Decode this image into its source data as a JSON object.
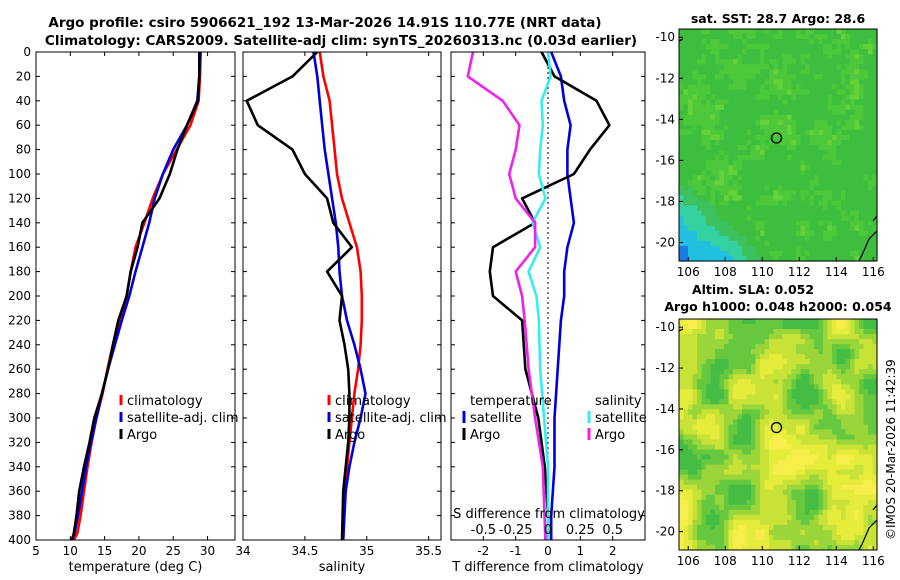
{
  "title_line1": "Argo profile: csiro 5906621_192 13-Mar-2026 14.91S 110.77E (NRT data)",
  "title_line2": "Climatology: CARS2009. Satellite-adj clim: synTS_20260313.nc (0.03d earlier)",
  "colors": {
    "climatology": "#ff0000",
    "satellite": "#0000dd",
    "argo": "#000000",
    "sal_sat": "#33eeee",
    "sal_argo": "#ee22ee"
  },
  "chart_data": [
    {
      "type": "line",
      "name": "temperature",
      "xlabel": "temperature (deg C)",
      "xlim": [
        5,
        34
      ],
      "ylim": [
        0,
        400
      ],
      "xticks": [
        5,
        10,
        15,
        20,
        25,
        30
      ],
      "yticks": [
        0,
        20,
        40,
        60,
        80,
        100,
        120,
        140,
        160,
        180,
        200,
        220,
        240,
        260,
        280,
        300,
        320,
        340,
        360,
        380,
        400
      ],
      "legend": [
        "climatology",
        "satellite-adj. clim",
        "Argo"
      ],
      "series": [
        {
          "name": "climatology",
          "color": "climatology",
          "x": [
            29,
            28.9,
            28.7,
            27.5,
            25.5,
            23.5,
            22,
            20.8,
            19.5,
            18.8,
            18.2,
            17.2,
            16.2,
            15.4,
            14.7,
            13.8,
            13.1,
            12.5,
            12,
            11.5,
            11,
            10.5,
            10.2
          ],
          "y": [
            0,
            20,
            40,
            60,
            80,
            100,
            120,
            140,
            160,
            180,
            200,
            220,
            240,
            260,
            280,
            300,
            320,
            340,
            360,
            380,
            395,
            400,
            400
          ]
        },
        {
          "name": "satellite-adj. clim",
          "color": "satellite",
          "x": [
            28.9,
            28.8,
            28.5,
            27,
            25,
            23.5,
            22.3,
            21.5,
            20.5,
            19.5,
            18.6,
            17.5,
            16.5,
            15.5,
            14.6,
            13.8,
            13,
            12.3,
            11.7,
            11.1,
            10.6,
            10.2
          ],
          "y": [
            0,
            20,
            40,
            60,
            80,
            100,
            120,
            140,
            160,
            180,
            200,
            220,
            240,
            260,
            280,
            300,
            320,
            340,
            360,
            380,
            395,
            400
          ]
        },
        {
          "name": "Argo",
          "color": "argo",
          "x": [
            28.8,
            28.8,
            28.6,
            27,
            25.6,
            24.5,
            23,
            20.5,
            19.8,
            18.8,
            18.2,
            17,
            16.2,
            15.5,
            14.6,
            13.5,
            12.8,
            12,
            11.3,
            10.9,
            10.5,
            10.2
          ],
          "y": [
            0,
            20,
            40,
            60,
            80,
            100,
            120,
            140,
            160,
            180,
            200,
            220,
            240,
            260,
            280,
            300,
            320,
            340,
            360,
            380,
            395,
            400
          ]
        }
      ]
    },
    {
      "type": "line",
      "name": "salinity",
      "xlabel": "salinity",
      "xlim": [
        34,
        35.6
      ],
      "ylim": [
        0,
        400
      ],
      "xticks": [
        34,
        34.5,
        35,
        35.5
      ],
      "xticklabels": [
        "34",
        "34.5",
        "35",
        "35.5"
      ],
      "legend": [
        "climatology",
        "satellite-adj. clim",
        "Argo"
      ],
      "series": [
        {
          "name": "climatology",
          "color": "climatology",
          "x": [
            34.62,
            34.65,
            34.7,
            34.72,
            34.74,
            34.76,
            34.8,
            34.86,
            34.92,
            34.95,
            34.96,
            34.96,
            34.95,
            34.93,
            34.9,
            34.88,
            34.86,
            34.84,
            34.82,
            34.81
          ],
          "y": [
            0,
            20,
            40,
            60,
            80,
            100,
            120,
            140,
            160,
            180,
            200,
            220,
            240,
            260,
            280,
            300,
            320,
            340,
            360,
            400
          ]
        },
        {
          "name": "satellite-adj. clim",
          "color": "satellite",
          "x": [
            34.57,
            34.6,
            34.62,
            34.64,
            34.66,
            34.69,
            34.72,
            34.75,
            34.77,
            34.78,
            34.8,
            34.84,
            34.9,
            34.95,
            34.99,
            34.95,
            34.9,
            34.86,
            34.83,
            34.81
          ],
          "y": [
            0,
            20,
            40,
            60,
            80,
            100,
            120,
            140,
            160,
            180,
            200,
            220,
            240,
            260,
            280,
            300,
            320,
            340,
            360,
            400
          ]
        },
        {
          "name": "Argo",
          "color": "argo",
          "x": [
            34.6,
            34.4,
            34.03,
            34.12,
            34.4,
            34.5,
            34.68,
            34.73,
            34.88,
            34.68,
            34.8,
            34.78,
            34.82,
            34.85,
            34.86,
            34.86,
            34.85,
            34.83,
            34.81,
            34.8
          ],
          "y": [
            0,
            20,
            40,
            60,
            80,
            100,
            120,
            140,
            160,
            180,
            200,
            220,
            240,
            260,
            280,
            300,
            320,
            340,
            360,
            400
          ]
        }
      ]
    },
    {
      "type": "line",
      "name": "differences",
      "xlabel": "T difference from climatology",
      "x2label": "S difference from climatology",
      "xlim": [
        -3,
        3
      ],
      "ylim": [
        0,
        400
      ],
      "xticks": [
        -2,
        -1,
        0,
        1,
        2
      ],
      "x2ticks": [
        -0.5,
        -0.25,
        0,
        0.25,
        0.5
      ],
      "x2ticklabels": [
        "-0.5",
        "-0.25",
        "0",
        "0.25",
        "0.5"
      ],
      "legend": {
        "temperature": "temperature",
        "salinity": "salinity",
        "satellite": "satellite",
        "argo": "Argo"
      },
      "series": [
        {
          "name": "T satellite",
          "color": "satellite",
          "x": [
            0.1,
            0.4,
            0.5,
            0.7,
            0.6,
            0.6,
            0.7,
            0.8,
            0.6,
            0.5,
            0.5,
            0.4,
            0.3,
            0.2,
            0.2,
            0.1,
            0.1,
            0.1
          ],
          "y": [
            0,
            20,
            40,
            60,
            80,
            100,
            120,
            140,
            160,
            180,
            200,
            220,
            260,
            300,
            340,
            380,
            395,
            400
          ]
        },
        {
          "name": "T Argo",
          "color": "argo",
          "x": [
            -0.2,
            0.2,
            1.5,
            1.9,
            1.3,
            0.8,
            -0.8,
            -0.4,
            -1.7,
            -1.8,
            -1.7,
            -0.8,
            -0.7,
            -0.3,
            -0.1,
            0,
            0
          ],
          "y": [
            0,
            20,
            40,
            60,
            80,
            100,
            120,
            140,
            160,
            180,
            200,
            220,
            260,
            300,
            340,
            380,
            400
          ]
        },
        {
          "name": "S satellite",
          "color": "sal_sat",
          "x": [
            0,
            0.02,
            -0.05,
            -0.04,
            -0.06,
            -0.07,
            -0.02,
            -0.12,
            -0.06,
            -0.15,
            -0.09,
            -0.07,
            -0.06,
            -0.03,
            0,
            0
          ],
          "y": [
            0,
            20,
            40,
            60,
            80,
            100,
            120,
            140,
            160,
            180,
            200,
            220,
            260,
            300,
            340,
            400
          ]
        },
        {
          "name": "S Argo",
          "color": "sal_argo",
          "x": [
            -0.58,
            -0.62,
            -0.35,
            -0.22,
            -0.25,
            -0.3,
            -0.25,
            -0.1,
            -0.1,
            -0.25,
            -0.2,
            -0.18,
            -0.15,
            -0.1,
            -0.04,
            -0.02
          ],
          "y": [
            0,
            20,
            40,
            60,
            80,
            100,
            120,
            140,
            160,
            180,
            200,
            220,
            260,
            300,
            340,
            400
          ]
        }
      ]
    },
    {
      "type": "heatmap",
      "name": "sst_map",
      "title": "sat. SST: 28.7 Argo: 28.6",
      "xticks": [
        106,
        108,
        110,
        112,
        114,
        116
      ],
      "yticks": [
        -10,
        -12,
        -14,
        -16,
        -18,
        -20
      ],
      "xlim": [
        105.5,
        116.2
      ],
      "ylim": [
        -20.9,
        -9.6
      ],
      "marker": {
        "lon": 110.77,
        "lat": -14.91
      }
    },
    {
      "type": "heatmap",
      "name": "sla_map",
      "title1": "Altim. SLA: 0.052",
      "title2": "Argo h1000: 0.048 h2000: 0.054",
      "xticks": [
        106,
        108,
        110,
        112,
        114,
        116
      ],
      "yticks": [
        -10,
        -12,
        -14,
        -16,
        -18,
        -20
      ],
      "xlim": [
        105.5,
        116.2
      ],
      "ylim": [
        -20.9,
        -9.6
      ],
      "marker": {
        "lon": 110.77,
        "lat": -14.91
      }
    }
  ],
  "credit": "©IMOS 20-Mar-2026 11:42:39"
}
